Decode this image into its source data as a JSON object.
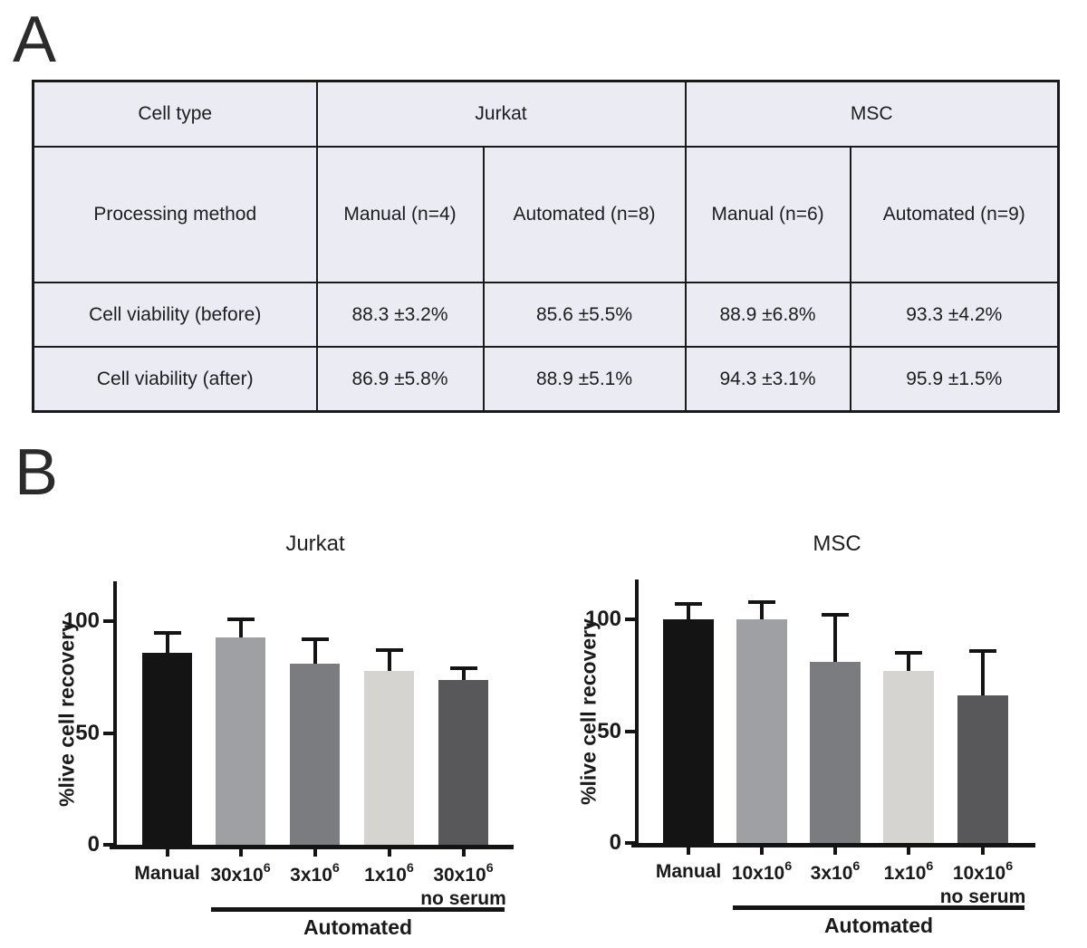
{
  "panel_a": {
    "label": "A",
    "table": {
      "cell_type_label": "Cell type",
      "cell_types": [
        "Jurkat",
        "MSC"
      ],
      "method_row": {
        "label": "Processing method",
        "cells": [
          "Manual (n=4)",
          "Automated (n=8)",
          "Manual (n=6)",
          "Automated (n=9)"
        ]
      },
      "rows": [
        {
          "label": "Cell viability (before)",
          "values": [
            "88.3 ±3.2%",
            "85.6 ±5.5%",
            "88.9 ±6.8%",
            "93.3 ±4.2%"
          ]
        },
        {
          "label": "Cell viability (after)",
          "values": [
            "86.9 ±5.8%",
            "88.9 ±5.1%",
            "94.3 ±3.1%",
            "95.9 ±1.5%"
          ]
        }
      ]
    }
  },
  "panel_b": {
    "label": "B"
  },
  "chart_data": [
    {
      "type": "bar",
      "title": "Jurkat",
      "xlabel": "",
      "ylabel": "%live cell recovery",
      "ylim": [
        0,
        118
      ],
      "yticks": [
        0,
        50,
        100
      ],
      "grid": false,
      "legend": "none",
      "categories": [
        "Manual",
        "30x10^6",
        "3x10^6",
        "1x10^6",
        "30x10^6 no serum"
      ],
      "x_labels": [
        {
          "text": "Manual"
        },
        {
          "text": "30x10",
          "sup": "6"
        },
        {
          "text": "3x10",
          "sup": "6"
        },
        {
          "text": "1x10",
          "sup": "6"
        },
        {
          "text": "30x10",
          "sup": "6",
          "line2": "no serum"
        }
      ],
      "values": [
        86,
        93,
        81,
        78,
        74
      ],
      "errors_plus": [
        9,
        8,
        11,
        9,
        5
      ],
      "bar_colors": [
        "#141414",
        "#9fa0a4",
        "#7b7c7f",
        "#d5d4d1",
        "#58585a"
      ],
      "group": {
        "label": "Automated",
        "from_bar": 1,
        "to_bar": 4
      }
    },
    {
      "type": "bar",
      "title": "MSC",
      "xlabel": "",
      "ylabel": "%live cell recovery",
      "ylim": [
        0,
        118
      ],
      "yticks": [
        0,
        50,
        100
      ],
      "grid": false,
      "legend": "none",
      "categories": [
        "Manual",
        "10x10^6",
        "3x10^6",
        "1x10^6",
        "10x10^6 no serum"
      ],
      "x_labels": [
        {
          "text": "Manual"
        },
        {
          "text": "10x10",
          "sup": "6"
        },
        {
          "text": "3x10",
          "sup": "6"
        },
        {
          "text": "1x10",
          "sup": "6"
        },
        {
          "text": "10x10",
          "sup": "6",
          "line2": "no serum"
        }
      ],
      "values": [
        100,
        100,
        81,
        77,
        66
      ],
      "errors_plus": [
        7,
        8,
        21,
        8,
        20
      ],
      "bar_colors": [
        "#141414",
        "#9fa0a4",
        "#7b7c7f",
        "#d5d4d1",
        "#58585a"
      ],
      "group": {
        "label": "Automated",
        "from_bar": 1,
        "to_bar": 4
      }
    }
  ]
}
